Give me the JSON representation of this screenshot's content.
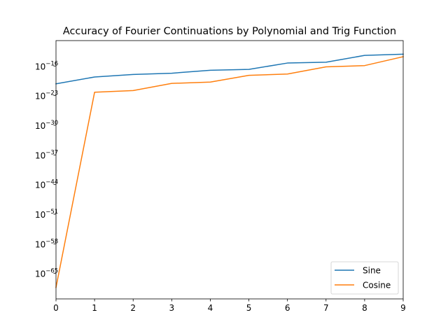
{
  "chart_data": {
    "type": "line",
    "title": "Accuracy of Fourier Continuations by Polynomial and Trig Function",
    "xlabel": "",
    "ylabel": "",
    "x": [
      0,
      1,
      2,
      3,
      4,
      5,
      6,
      7,
      8,
      9
    ],
    "xlim": [
      0,
      9
    ],
    "y_scale": "log",
    "ylim_exponent": [
      -71,
      -10
    ],
    "xticks": [
      "0",
      "1",
      "2",
      "3",
      "4",
      "5",
      "6",
      "7",
      "8",
      "9"
    ],
    "yticks": [
      {
        "base": "10",
        "exp": "−16",
        "value": -16
      },
      {
        "base": "10",
        "exp": "−23",
        "value": -23
      },
      {
        "base": "10",
        "exp": "−30",
        "value": -30
      },
      {
        "base": "10",
        "exp": "−37",
        "value": -37
      },
      {
        "base": "10",
        "exp": "−44",
        "value": -44
      },
      {
        "base": "10",
        "exp": "−51",
        "value": -51
      },
      {
        "base": "10",
        "exp": "−58",
        "value": -58
      },
      {
        "base": "10",
        "exp": "−65",
        "value": -65
      }
    ],
    "grid": false,
    "legend_position": "bottom-right",
    "series": [
      {
        "name": "Sine",
        "color": "#1f77b4",
        "log10_values": [
          -20.2,
          -18.6,
          -18.0,
          -17.7,
          -17.0,
          -16.8,
          -15.3,
          -15.1,
          -13.5,
          -13.2
        ]
      },
      {
        "name": "Cosine",
        "color": "#ff7f0e",
        "log10_values": [
          -68.3,
          -22.2,
          -21.8,
          -20.1,
          -19.8,
          -18.2,
          -17.9,
          -16.2,
          -15.9,
          -13.8
        ]
      }
    ]
  }
}
